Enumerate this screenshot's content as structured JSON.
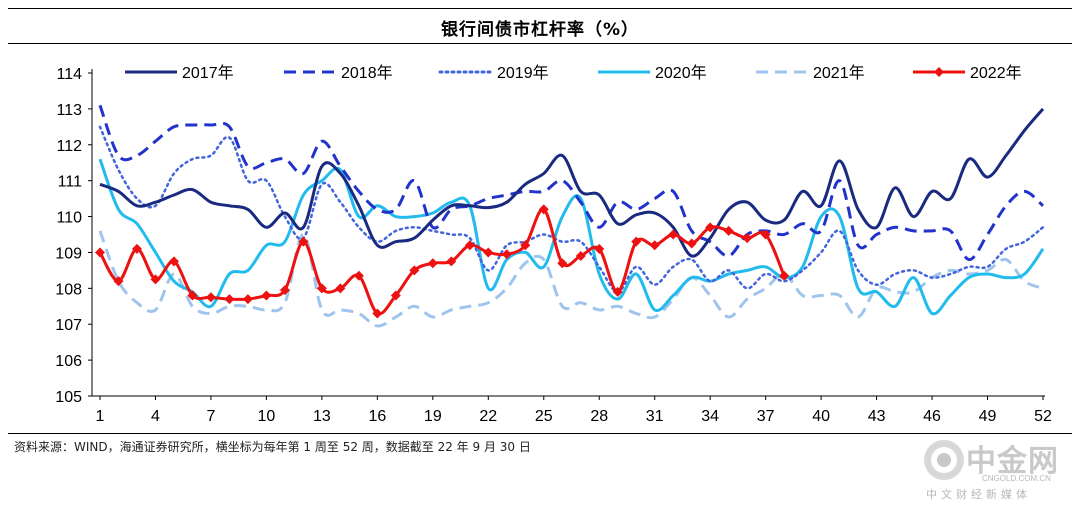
{
  "title": "银行间债市杠杆率（%）",
  "source": "资料来源：WIND，海通证券研究所，横坐标为每年第 1 周至 52 周，数据截至 22 年 9 月 30 日",
  "watermark": {
    "name": "中金网",
    "domain": "CNGOLD.COM.CN",
    "sub": "中文财经新媒体"
  },
  "chart_data": {
    "type": "line",
    "title": "银行间债市杠杆率（%）",
    "xlabel": "",
    "ylabel": "",
    "xlim": [
      1,
      52
    ],
    "ylim": [
      105,
      114
    ],
    "x_ticks": [
      1,
      4,
      7,
      10,
      13,
      16,
      19,
      22,
      25,
      28,
      31,
      34,
      37,
      40,
      43,
      46,
      49,
      52
    ],
    "y_ticks": [
      105,
      106,
      107,
      108,
      109,
      110,
      111,
      112,
      113,
      114
    ],
    "legend_position": "top",
    "series": [
      {
        "name": "2017年",
        "color": "#1a2a80",
        "style": "solid",
        "marker": false,
        "values": [
          110.9,
          110.7,
          110.3,
          110.4,
          110.6,
          110.75,
          110.4,
          110.3,
          110.2,
          109.7,
          110.1,
          109.7,
          111.4,
          111.2,
          110.3,
          109.2,
          109.3,
          109.4,
          109.9,
          110.3,
          110.3,
          110.25,
          110.4,
          110.9,
          111.2,
          111.7,
          110.7,
          110.6,
          109.8,
          110.05,
          110.1,
          109.7,
          108.9,
          109.4,
          110.2,
          110.4,
          109.9,
          109.9,
          110.7,
          110.3,
          111.55,
          110.2,
          109.7,
          110.8,
          110.0,
          110.7,
          110.5,
          111.6,
          111.1,
          111.7,
          112.4,
          113.0
        ]
      },
      {
        "name": "2018年",
        "color": "#2233cc",
        "style": "dashed",
        "marker": false,
        "values": [
          113.1,
          111.7,
          111.7,
          112.1,
          112.5,
          112.55,
          112.55,
          112.5,
          111.4,
          111.5,
          111.6,
          111.2,
          112.1,
          111.4,
          110.7,
          110.2,
          110.2,
          111.0,
          109.7,
          110.2,
          110.3,
          110.5,
          110.6,
          110.7,
          110.7,
          111.0,
          110.4,
          109.7,
          110.4,
          110.2,
          110.5,
          110.7,
          109.6,
          109.3,
          108.9,
          109.5,
          109.6,
          109.5,
          109.8,
          109.6,
          111.0,
          109.2,
          109.5,
          109.7,
          109.6,
          109.6,
          109.6,
          108.8,
          109.5,
          110.3,
          110.7,
          110.3
        ]
      },
      {
        "name": "2019年",
        "color": "#4466dd",
        "style": "dotted",
        "marker": false,
        "values": [
          112.5,
          111.3,
          110.5,
          110.3,
          111.2,
          111.6,
          111.7,
          112.2,
          111.0,
          111.0,
          110.0,
          109.4,
          110.9,
          110.4,
          109.7,
          109.3,
          109.6,
          109.7,
          109.6,
          109.5,
          109.4,
          108.5,
          109.2,
          109.3,
          109.5,
          109.3,
          109.3,
          108.6,
          107.9,
          108.6,
          108.1,
          108.6,
          108.8,
          108.2,
          108.5,
          108.0,
          108.4,
          108.2,
          108.5,
          109.0,
          109.6,
          108.5,
          108.1,
          108.4,
          108.5,
          108.3,
          108.4,
          108.6,
          108.6,
          109.1,
          109.3,
          109.7
        ]
      },
      {
        "name": "2020年",
        "color": "#22bbee",
        "style": "solid",
        "marker": false,
        "values": [
          111.6,
          110.2,
          109.8,
          109.0,
          108.2,
          107.9,
          107.5,
          108.4,
          108.5,
          109.2,
          109.3,
          110.6,
          111.0,
          111.3,
          110.0,
          110.3,
          110.0,
          110.0,
          110.1,
          110.4,
          110.3,
          108.0,
          108.8,
          109.0,
          108.6,
          110.0,
          110.5,
          108.4,
          107.7,
          108.4,
          107.4,
          107.8,
          108.3,
          108.2,
          108.4,
          108.5,
          108.6,
          108.3,
          108.6,
          110.0,
          110.0,
          108.0,
          107.9,
          107.5,
          108.3,
          107.3,
          107.8,
          108.3,
          108.4,
          108.3,
          108.4,
          109.1
        ]
      },
      {
        "name": "2021年",
        "color": "#9fc4ee",
        "style": "dashed",
        "marker": false,
        "values": [
          109.6,
          108.2,
          107.6,
          107.4,
          108.4,
          107.5,
          107.3,
          107.5,
          107.5,
          107.4,
          107.6,
          109.5,
          107.4,
          107.4,
          107.3,
          106.95,
          107.2,
          107.5,
          107.2,
          107.4,
          107.5,
          107.6,
          108.0,
          108.7,
          108.8,
          107.5,
          107.6,
          107.4,
          107.5,
          107.3,
          107.2,
          107.7,
          108.3,
          107.8,
          107.2,
          107.7,
          108.0,
          108.4,
          107.8,
          107.8,
          107.8,
          107.2,
          108.0,
          107.9,
          107.9,
          108.3,
          108.5,
          108.4,
          108.5,
          108.8,
          108.2,
          108.0
        ]
      },
      {
        "name": "2022年",
        "color": "#ee1111",
        "style": "solid",
        "marker": true,
        "values": [
          109.0,
          108.2,
          109.1,
          108.25,
          108.75,
          107.8,
          107.75,
          107.7,
          107.7,
          107.8,
          107.95,
          109.3,
          108.0,
          108.0,
          108.35,
          107.3,
          107.8,
          108.5,
          108.7,
          108.75,
          109.2,
          109.0,
          108.95,
          109.2,
          110.2,
          108.7,
          108.9,
          109.1,
          107.9,
          109.3,
          109.2,
          109.5,
          109.25,
          109.7,
          109.6,
          109.4,
          109.5,
          108.35
        ]
      }
    ]
  }
}
